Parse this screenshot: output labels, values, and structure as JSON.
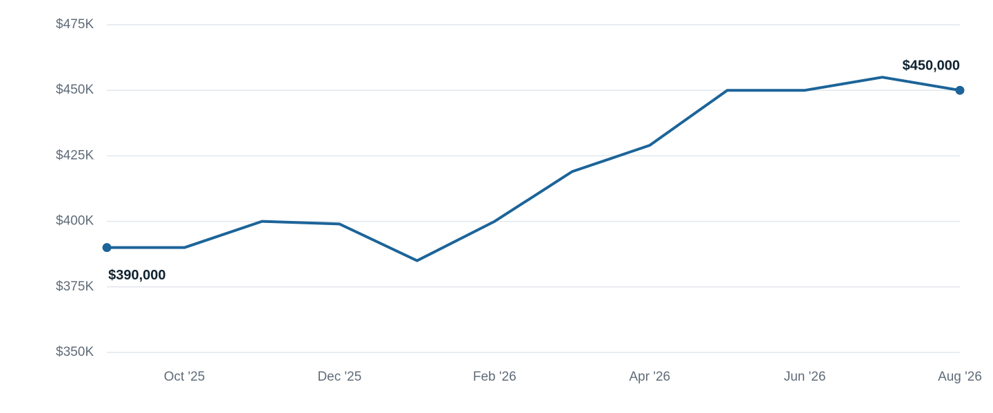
{
  "chart_data": {
    "type": "line",
    "categories": [
      null,
      "Oct '25",
      null,
      "Dec '25",
      null,
      "Feb '26",
      null,
      "Apr '26",
      null,
      "Jun '26",
      null,
      "Aug '26"
    ],
    "series": [
      {
        "color": "#1c6499",
        "values": [
          390000,
          390000,
          400000,
          399000,
          385000,
          400000,
          419000,
          429000,
          450000,
          450000,
          455000,
          450000
        ],
        "value_labels": [
          "$390,000",
          null,
          null,
          null,
          null,
          null,
          null,
          null,
          null,
          null,
          null,
          "$450,000"
        ]
      }
    ],
    "ylim": [
      350000,
      475000
    ],
    "yticks": [
      {
        "value": 350000,
        "label": "$350K"
      },
      {
        "value": 375000,
        "label": "$375K"
      },
      {
        "value": 400000,
        "label": "$400K"
      },
      {
        "value": 425000,
        "label": "$425K"
      },
      {
        "value": 450000,
        "label": "$450K"
      },
      {
        "value": 475000,
        "label": "$475K"
      }
    ],
    "grid": true
  }
}
